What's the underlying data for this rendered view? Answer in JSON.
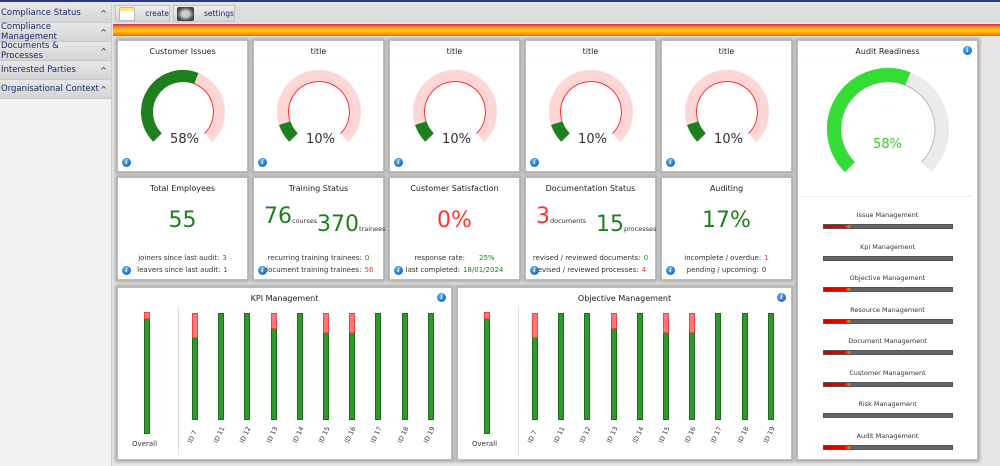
{
  "sidebar": {
    "items": [
      {
        "label": "Compliance Status"
      },
      {
        "label": "Compliance Management"
      },
      {
        "label": "Documents & Processes"
      },
      {
        "label": "Interested Parties"
      },
      {
        "label": "Organisational Context"
      }
    ]
  },
  "toolbar": {
    "create_label": "create",
    "settings_label": "settings"
  },
  "gauges": [
    {
      "title": "Customer Issues",
      "value": 58,
      "label": "58%"
    },
    {
      "title": "title",
      "value": 10,
      "label": "10%"
    },
    {
      "title": "title",
      "value": 10,
      "label": "10%"
    },
    {
      "title": "title",
      "value": 10,
      "label": "10%"
    },
    {
      "title": "title",
      "value": 10,
      "label": "10%"
    }
  ],
  "colors": {
    "good": "#1e7f1e",
    "bad": "#ff3333",
    "readiness": "#33dd33"
  },
  "employees": {
    "title": "Total Employees",
    "value": "55",
    "joiners_label": "joiners since last audit:",
    "joiners": "3",
    "leavers_label": "leavers since last audit:",
    "leavers": "1"
  },
  "training": {
    "title": "Training Status",
    "courses": "76",
    "courses_unit": "courses",
    "trainees": "370",
    "trainees_unit": "trainees",
    "recurring_label": "recurring training trainees:",
    "recurring": "0",
    "document_label": "document training trainees:",
    "document": "56"
  },
  "satisfaction": {
    "title": "Customer Satisfaction",
    "value": "0%",
    "response_label": "response rate:",
    "response": "25%",
    "completed_label": "last completed:",
    "completed": "18/01/2024"
  },
  "documentation": {
    "title": "Documentation Status",
    "documents": "3",
    "documents_unit": "documents",
    "processes": "15",
    "processes_unit": "processes",
    "rev_docs_label": "revised / reviewed documents:",
    "rev_docs": "0",
    "rev_proc_label": "revised / reviewed processes:",
    "rev_proc": "4"
  },
  "auditing": {
    "title": "Auditing",
    "value": "17%",
    "incomplete_label": "incomplete / overdue:",
    "incomplete": "1",
    "pending_label": "pending / upcoming:",
    "pending": "0"
  },
  "audit_readiness": {
    "title": "Audit Readiness",
    "value": 58,
    "label": "58%",
    "areas": [
      {
        "label": "Issue Management",
        "progress": 20
      },
      {
        "label": "Kpi Management",
        "progress": 0
      },
      {
        "label": "Objective Management",
        "progress": 20
      },
      {
        "label": "Resource Management",
        "progress": 20
      },
      {
        "label": "Document Management",
        "progress": 20
      },
      {
        "label": "Customer Management",
        "progress": 20
      },
      {
        "label": "Risk Management",
        "progress": 0
      },
      {
        "label": "Audit Management",
        "progress": 20
      }
    ]
  },
  "chart_data": [
    {
      "type": "bar",
      "title": "KPI Management",
      "overall_label": "Overall",
      "overall_bad_pct": 6,
      "categories": [
        "ID 7",
        "ID 11",
        "ID 12",
        "ID 13",
        "ID 14",
        "ID 15",
        "ID 16",
        "ID 17",
        "ID 18",
        "ID 19"
      ],
      "bad_pct": [
        23,
        0,
        0,
        15,
        0,
        19,
        19,
        0,
        0,
        0
      ],
      "ylim": [
        0,
        100
      ]
    },
    {
      "type": "bar",
      "title": "Objective Management",
      "overall_label": "Overall",
      "overall_bad_pct": 6,
      "categories": [
        "ID 7",
        "ID 11",
        "ID 12",
        "ID 13",
        "ID 14",
        "ID 15",
        "ID 16",
        "ID 17",
        "ID 18",
        "ID 19"
      ],
      "bad_pct": [
        23,
        0,
        0,
        15,
        0,
        19,
        19,
        0,
        0,
        0
      ],
      "ylim": [
        0,
        100
      ]
    }
  ]
}
